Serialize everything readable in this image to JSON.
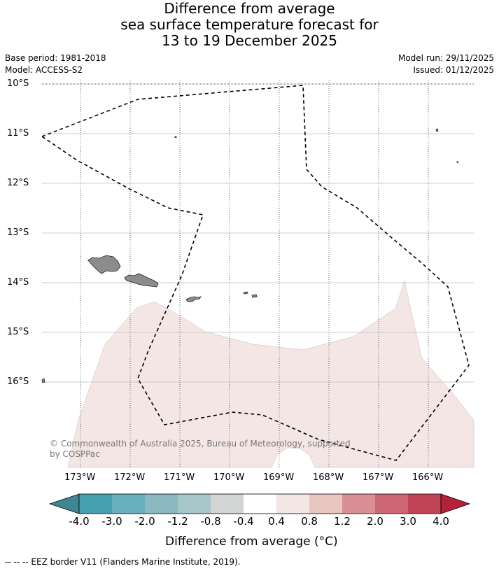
{
  "title": {
    "line1": "Difference from average",
    "line2": "sea surface temperature forecast for",
    "line3": "13 to 19 December 2025"
  },
  "meta": {
    "base_period": "Base period: 1981-2018",
    "model": "Model: ACCESS-S2",
    "model_run": "Model run: 29/11/2025",
    "issued": "Issued: 01/12/2025"
  },
  "map": {
    "lat_labels": [
      "10°S",
      "11°S",
      "12°S",
      "13°S",
      "14°S",
      "15°S",
      "16°S"
    ],
    "lon_labels": [
      "173°W",
      "172°W",
      "171°W",
      "170°W",
      "169°W",
      "168°W",
      "167°W",
      "166°W"
    ],
    "copyright_line1": "© Commonwealth of Australia 2025, Bureau of Meteorology, supported",
    "copyright_line2": "by COSPPac",
    "land_color": "#8c8c8c",
    "anomaly_color": "#f4e6e4",
    "anomaly_category": "0.4 to 0.8"
  },
  "colorbar": {
    "ticks": [
      "-4.0",
      "-3.0",
      "-2.0",
      "-1.2",
      "-0.8",
      "-0.4",
      "0.4",
      "0.8",
      "1.2",
      "2.0",
      "3.0",
      "4.0"
    ],
    "colors": [
      "#3d8795",
      "#45a0b0",
      "#6aafbd",
      "#8db8c2",
      "#a7c6ca",
      "#d3d5d5",
      "#ffffff",
      "#f4e6e4",
      "#e9c5c2",
      "#da8f97",
      "#cc6773",
      "#c04455",
      "#b4223a"
    ],
    "label": "Difference from average (°C)"
  },
  "legend": {
    "eez": "--  --  -- EEZ border V11 (Flanders Marine Institute, 2019)."
  }
}
